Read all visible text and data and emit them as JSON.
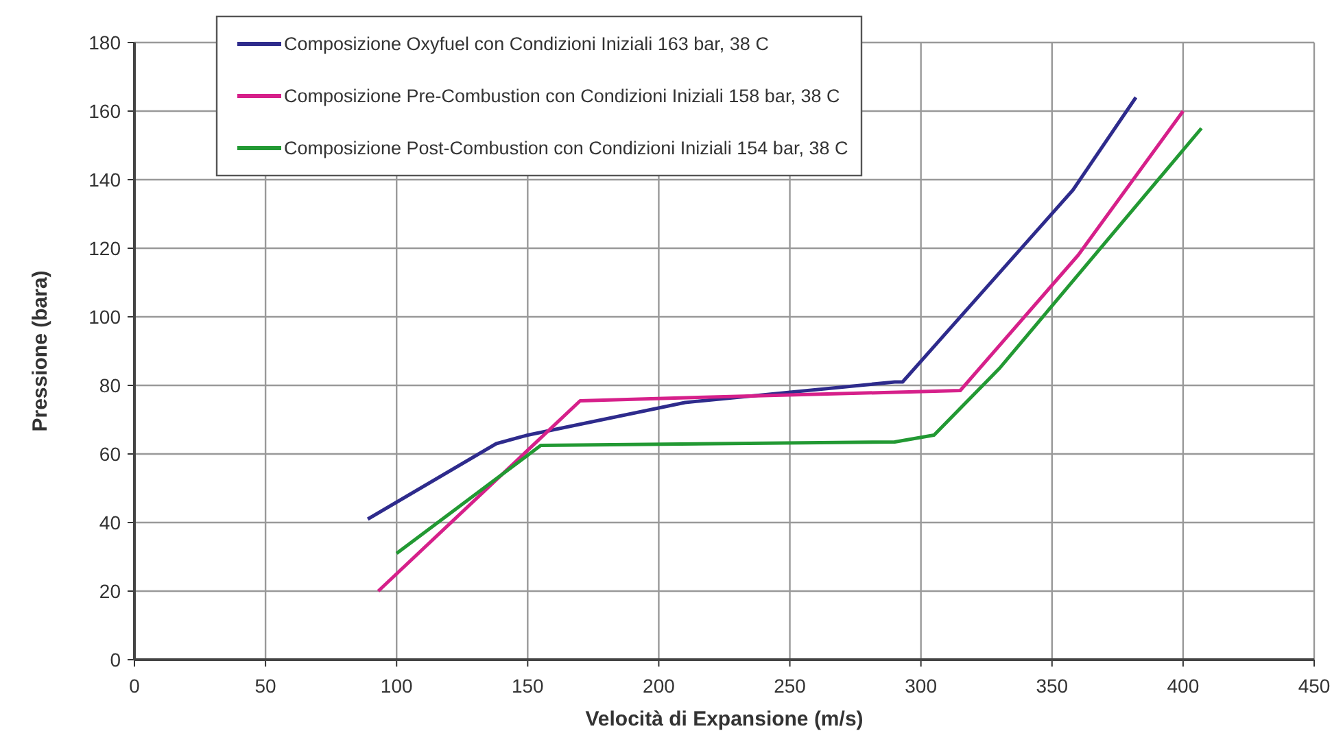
{
  "chart_data": {
    "type": "line",
    "xlabel": "Velocità di Expansione (m/s)",
    "ylabel": "Pressione (bara)",
    "xlim": [
      0,
      450
    ],
    "ylim": [
      0,
      180
    ],
    "xticks": [
      0,
      50,
      100,
      150,
      200,
      250,
      300,
      350,
      400,
      450
    ],
    "yticks": [
      0,
      20,
      40,
      60,
      80,
      100,
      120,
      140,
      160,
      180
    ],
    "grid": true,
    "legend": "top left",
    "marker": "none",
    "line_style": "solid",
    "series": [
      {
        "name": "Composizione Oxyfuel con Condizioni Iniziali 163 bar, 38 C",
        "color": "#2e2b8c",
        "x": [
          89,
          138,
          150,
          210,
          290,
          293,
          358,
          382
        ],
        "values": [
          41,
          63,
          65.5,
          75,
          81,
          81,
          137,
          164
        ]
      },
      {
        "name": "Composizione Pre-Combustion con Condizioni Iniziali 158 bar, 38 C",
        "color": "#d6208a",
        "x": [
          93,
          170,
          215,
          315,
          360,
          400
        ],
        "values": [
          20,
          75.5,
          76.5,
          78.5,
          118,
          160
        ]
      },
      {
        "name": "Composizione Post-Combustion con Condizioni Iniziali 154 bar, 38 C",
        "color": "#229933",
        "x": [
          100,
          155,
          290,
          305,
          330,
          407
        ],
        "values": [
          31,
          62.5,
          63.5,
          65.5,
          85,
          155
        ]
      }
    ]
  }
}
